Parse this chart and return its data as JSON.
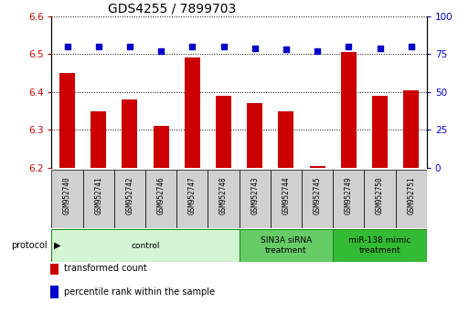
{
  "title": "GDS4255 / 7899703",
  "samples": [
    "GSM952740",
    "GSM952741",
    "GSM952742",
    "GSM952746",
    "GSM952747",
    "GSM952748",
    "GSM952743",
    "GSM952744",
    "GSM952745",
    "GSM952749",
    "GSM952750",
    "GSM952751"
  ],
  "transformed_counts": [
    6.45,
    6.35,
    6.38,
    6.31,
    6.49,
    6.39,
    6.37,
    6.35,
    6.205,
    6.505,
    6.39,
    6.405
  ],
  "percentile_ranks": [
    80,
    80,
    80,
    77,
    80,
    80,
    79,
    78,
    77,
    80,
    79,
    80
  ],
  "ylim_left": [
    6.2,
    6.6
  ],
  "ylim_right": [
    0,
    100
  ],
  "yticks_left": [
    6.2,
    6.3,
    6.4,
    6.5,
    6.6
  ],
  "yticks_right": [
    0,
    25,
    50,
    75,
    100
  ],
  "bar_color": "#cc0000",
  "dot_color": "#0000cc",
  "grid_color": "#000000",
  "bg_color": "#ffffff",
  "protocol_groups": [
    {
      "label": "control",
      "start": 0,
      "end": 6,
      "color": "#d4f5d4",
      "border": "#228B22"
    },
    {
      "label": "SIN3A siRNA\ntreatment",
      "start": 6,
      "end": 9,
      "color": "#66cc66",
      "border": "#228B22"
    },
    {
      "label": "miR-138 mimic\ntreatment",
      "start": 9,
      "end": 12,
      "color": "#33bb33",
      "border": "#228B22"
    }
  ],
  "legend_items": [
    {
      "color": "#cc0000",
      "label": "transformed count"
    },
    {
      "color": "#0000cc",
      "label": "percentile rank within the sample"
    }
  ],
  "title_fontsize": 10,
  "tick_fontsize": 7.5,
  "label_fontsize": 7.5,
  "bar_width": 0.5,
  "baseline": 6.2
}
